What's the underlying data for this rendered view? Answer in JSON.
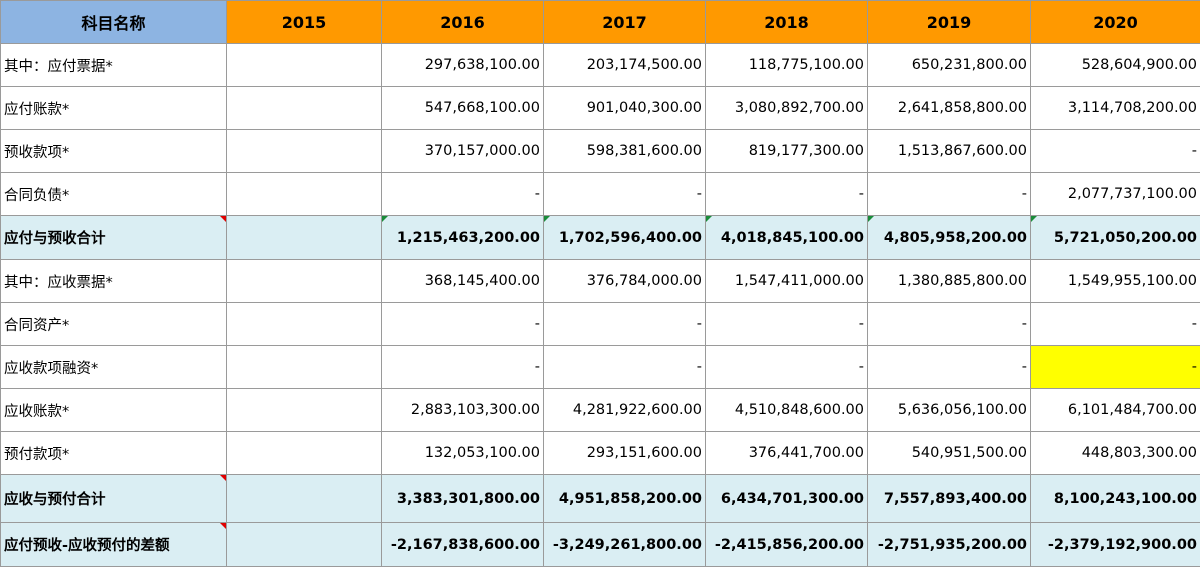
{
  "header": {
    "name_label": "科目名称",
    "years": [
      "2015",
      "2016",
      "2017",
      "2018",
      "2019",
      "2020"
    ]
  },
  "rows": [
    {
      "name": "其中：应付票据*",
      "values": [
        "",
        "297,638,100.00",
        "203,174,500.00",
        "118,775,100.00",
        "650,231,800.00",
        "528,604,900.00"
      ]
    },
    {
      "name": "应付账款*",
      "values": [
        "",
        "547,668,100.00",
        "901,040,300.00",
        "3,080,892,700.00",
        "2,641,858,800.00",
        "3,114,708,200.00"
      ]
    },
    {
      "name": "预收款项*",
      "values": [
        "",
        "370,157,000.00",
        "598,381,600.00",
        "819,177,300.00",
        "1,513,867,600.00",
        "-"
      ]
    },
    {
      "name": "合同负债*",
      "values": [
        "",
        "-",
        "-",
        "-",
        "-",
        "2,077,737,100.00"
      ]
    },
    {
      "name": "应付与预收合计",
      "values": [
        "",
        "1,215,463,200.00",
        "1,702,596,400.00",
        "4,018,845,100.00",
        "4,805,958,200.00",
        "5,721,050,200.00"
      ]
    },
    {
      "name": "其中：应收票据*",
      "values": [
        "",
        "368,145,400.00",
        "376,784,000.00",
        "1,547,411,000.00",
        "1,380,885,800.00",
        "1,549,955,100.00"
      ]
    },
    {
      "name": "合同资产*",
      "values": [
        "",
        "-",
        "-",
        "-",
        "-",
        "-"
      ]
    },
    {
      "name": "应收款项融资*",
      "values": [
        "",
        "-",
        "-",
        "-",
        "-",
        "-"
      ]
    },
    {
      "name": "应收账款*",
      "values": [
        "",
        "2,883,103,300.00",
        "4,281,922,600.00",
        "4,510,848,600.00",
        "5,636,056,100.00",
        "6,101,484,700.00"
      ]
    },
    {
      "name": "预付款项*",
      "values": [
        "",
        "132,053,100.00",
        "293,151,600.00",
        "376,441,700.00",
        "540,951,500.00",
        "448,803,300.00"
      ]
    },
    {
      "name": "应收与预付合计",
      "values": [
        "",
        "3,383,301,800.00",
        "4,951,858,200.00",
        "6,434,701,300.00",
        "7,557,893,400.00",
        "8,100,243,100.00"
      ]
    },
    {
      "name": "应付预收-应收预付的差额",
      "values": [
        "",
        "-2,167,838,600.00",
        "-3,249,261,800.00",
        "-2,415,856,200.00",
        "-2,751,935,200.00",
        "-2,379,192,900.00"
      ]
    }
  ],
  "colors": {
    "header_orange": "#ff9900",
    "header_blue": "#8db4e2",
    "total_row_bg": "#daeef3",
    "highlight_yellow": "#ffff00"
  }
}
